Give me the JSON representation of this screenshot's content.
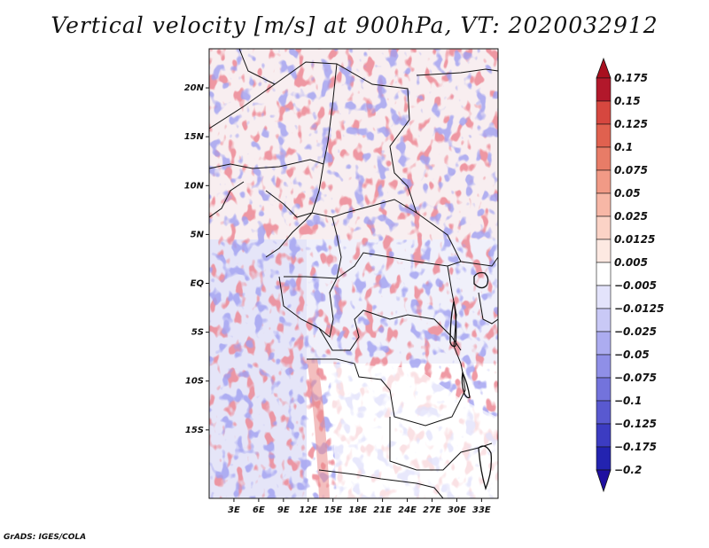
{
  "title": "Vertical velocity [m/s] at 900hPa, VT: 2020032912",
  "footer": "GrADS: IGES/COLA",
  "variable": "Vertical velocity",
  "units": "m/s",
  "level": "900hPa",
  "valid_time": "2020032912",
  "map": {
    "region": "Central Africa",
    "lon_range": [
      0,
      35
    ],
    "lat_range": [
      -22,
      24
    ],
    "lon_ticks": [
      {
        "value": 3,
        "label": "3E"
      },
      {
        "value": 6,
        "label": "6E"
      },
      {
        "value": 9,
        "label": "9E"
      },
      {
        "value": 12,
        "label": "12E"
      },
      {
        "value": 15,
        "label": "15E"
      },
      {
        "value": 18,
        "label": "18E"
      },
      {
        "value": 21,
        "label": "21E"
      },
      {
        "value": 24,
        "label": "24E"
      },
      {
        "value": 27,
        "label": "27E"
      },
      {
        "value": 30,
        "label": "30E"
      },
      {
        "value": 33,
        "label": "33E"
      }
    ],
    "lat_ticks": [
      {
        "value": 20,
        "label": "20N"
      },
      {
        "value": 15,
        "label": "15N"
      },
      {
        "value": 10,
        "label": "10N"
      },
      {
        "value": 5,
        "label": "5N"
      },
      {
        "value": 0,
        "label": "EQ"
      },
      {
        "value": -5,
        "label": "5S"
      },
      {
        "value": -10,
        "label": "10S"
      },
      {
        "value": -15,
        "label": "15S"
      }
    ]
  },
  "colorbar": {
    "levels": [
      {
        "label": "0.175",
        "color": "#b2182b"
      },
      {
        "label": "0.15",
        "color": "#c32f35"
      },
      {
        "label": "0.125",
        "color": "#d6473f"
      },
      {
        "label": "0.1",
        "color": "#e0614f"
      },
      {
        "label": "0.075",
        "color": "#e87c67"
      },
      {
        "label": "0.05",
        "color": "#f19a86"
      },
      {
        "label": "0.025",
        "color": "#f7b7a6"
      },
      {
        "label": "0.0125",
        "color": "#fbd3c6"
      },
      {
        "label": "0.005",
        "color": "#fde9e2"
      },
      {
        "label": "-0.005",
        "color": "#ffffff"
      },
      {
        "label": "-0.0125",
        "color": "#e3e3fb"
      },
      {
        "label": "-0.025",
        "color": "#c9c9f6"
      },
      {
        "label": "-0.05",
        "color": "#acacf0"
      },
      {
        "label": "-0.075",
        "color": "#8f8fe7"
      },
      {
        "label": "-0.1",
        "color": "#7373dc"
      },
      {
        "label": "-0.125",
        "color": "#5959d0"
      },
      {
        "label": "-0.175",
        "color": "#3c3cc2"
      },
      {
        "label": "-0.2",
        "color": "#2323b0"
      }
    ],
    "top_arrow_color": "#a8101f",
    "bottom_arrow_color": "#1f0fa0"
  }
}
